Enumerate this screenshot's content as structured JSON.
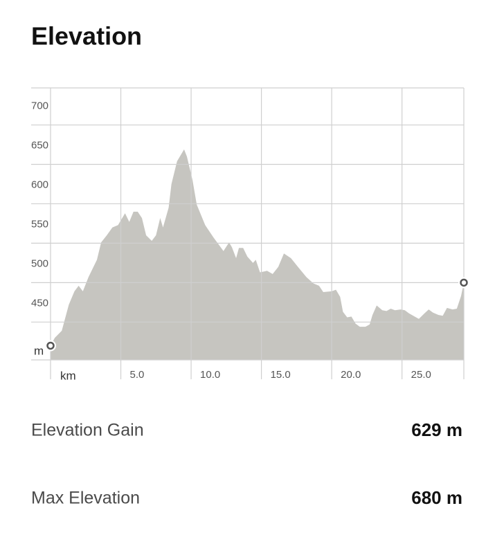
{
  "chart_data": {
    "type": "area",
    "title": "Elevation",
    "x_label": "km",
    "y_label": "m",
    "color": "#c6c5c0",
    "grid": true,
    "xlim": [
      0,
      29.4
    ],
    "ylim": [
      402,
      747
    ],
    "xticks": [
      {
        "value": 5,
        "label": "5.0"
      },
      {
        "value": 10,
        "label": "10.0"
      },
      {
        "value": 15,
        "label": "15.0"
      },
      {
        "value": 20,
        "label": "20.0"
      },
      {
        "value": 25,
        "label": "25.0"
      }
    ],
    "yticks": [
      450,
      500,
      550,
      600,
      650,
      700
    ],
    "x": [
      0,
      0.3,
      0.8,
      1.3,
      1.7,
      2.0,
      2.3,
      2.7,
      3.3,
      3.6,
      4.0,
      4.4,
      4.8,
      5.3,
      5.6,
      5.9,
      6.2,
      6.5,
      6.8,
      7.2,
      7.5,
      7.8,
      8.0,
      8.4,
      8.6,
      9.0,
      9.5,
      9.7,
      10.1,
      10.4,
      11.0,
      11.6,
      12.1,
      12.3,
      12.7,
      12.9,
      13.2,
      13.4,
      13.7,
      14.0,
      14.4,
      14.6,
      14.9,
      15.4,
      15.8,
      16.2,
      16.6,
      17.1,
      17.6,
      18.2,
      18.7,
      19.1,
      19.4,
      20.0,
      20.3,
      20.6,
      20.8,
      21.1,
      21.4,
      21.7,
      22.0,
      22.4,
      22.7,
      22.9,
      23.2,
      23.6,
      23.9,
      24.2,
      24.5,
      24.9,
      25.2,
      25.5,
      25.9,
      26.2,
      26.6,
      26.9,
      27.2,
      27.6,
      27.9,
      28.2,
      28.6,
      28.9,
      29.2,
      29.4
    ],
    "values": [
      420,
      430,
      439,
      472,
      489,
      496,
      489,
      507,
      529,
      551,
      560,
      570,
      573,
      588,
      577,
      590,
      590,
      582,
      560,
      553,
      560,
      582,
      570,
      595,
      625,
      654,
      669,
      660,
      630,
      599,
      573,
      557,
      545,
      540,
      551,
      545,
      531,
      544,
      544,
      533,
      525,
      529,
      513,
      515,
      511,
      520,
      537,
      531,
      520,
      507,
      499,
      496,
      488,
      489,
      491,
      482,
      463,
      456,
      457,
      448,
      444,
      444,
      447,
      459,
      471,
      465,
      464,
      467,
      465,
      466,
      465,
      461,
      457,
      454,
      461,
      466,
      462,
      459,
      458,
      468,
      466,
      467,
      483,
      500
    ]
  },
  "stats": [
    {
      "label": "Elevation Gain",
      "value": "629 m"
    },
    {
      "label": "Max Elevation",
      "value": "680 m"
    }
  ]
}
